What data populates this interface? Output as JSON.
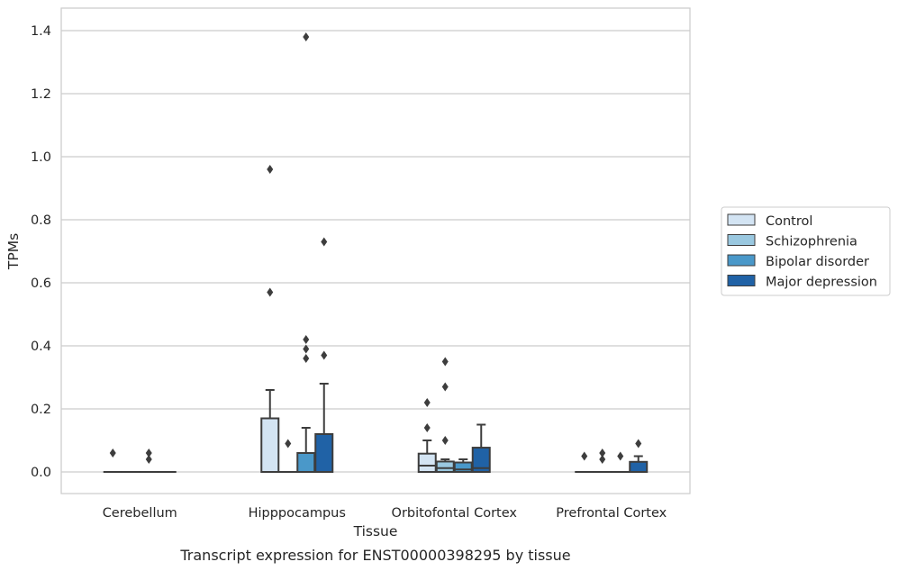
{
  "caption": "Transcript expression for ENST00000398295 by tissue",
  "chart_data": {
    "type": "box",
    "xlabel": "Tissue",
    "ylabel": "TPMs",
    "ylim": [
      -0.065,
      1.45
    ],
    "yticks": [
      0.0,
      0.2,
      0.4,
      0.6,
      0.8,
      1.0,
      1.2,
      1.4
    ],
    "ytick_labels": [
      "0.0",
      "0.2",
      "0.4",
      "0.6",
      "0.8",
      "1.0",
      "1.2",
      "1.4"
    ],
    "grid": "horizontal",
    "legend_position": "right",
    "categories": [
      "Cerebellum",
      "Hipppocampus",
      "Orbitofontal Cortex",
      "Prefrontal Cortex"
    ],
    "series": [
      {
        "name": "Control",
        "color": "#d3e4f3",
        "boxes": [
          {
            "q1": 0,
            "median": 0,
            "q3": 0,
            "whisker_low": 0,
            "whisker_high": 0,
            "outliers": [
              0.06
            ]
          },
          {
            "q1": 0,
            "median": 0,
            "q3": 0.17,
            "whisker_low": 0,
            "whisker_high": 0.26,
            "outliers": [
              0.57,
              0.96
            ]
          },
          {
            "q1": 0,
            "median": 0.02,
            "q3": 0.058,
            "whisker_low": 0,
            "whisker_high": 0.1,
            "outliers": [
              0.14,
              0.22
            ]
          },
          {
            "q1": 0,
            "median": 0,
            "q3": 0,
            "whisker_low": 0,
            "whisker_high": 0,
            "outliers": [
              0.05
            ]
          }
        ]
      },
      {
        "name": "Schizophrenia",
        "color": "#9ac8e0",
        "boxes": [
          {
            "q1": 0,
            "median": 0,
            "q3": 0,
            "whisker_low": 0,
            "whisker_high": 0,
            "outliers": []
          },
          {
            "q1": 0,
            "median": 0,
            "q3": 0,
            "whisker_low": 0,
            "whisker_high": 0,
            "outliers": [
              0.09
            ]
          },
          {
            "q1": 0,
            "median": 0.012,
            "q3": 0.033,
            "whisker_low": 0,
            "whisker_high": 0.04,
            "outliers": [
              0.1,
              0.27,
              0.35
            ]
          },
          {
            "q1": 0,
            "median": 0,
            "q3": 0,
            "whisker_low": 0,
            "whisker_high": 0,
            "outliers": [
              0.04,
              0.06
            ]
          }
        ]
      },
      {
        "name": "Bipolar disorder",
        "color": "#4a98c9",
        "boxes": [
          {
            "q1": 0,
            "median": 0,
            "q3": 0,
            "whisker_low": 0,
            "whisker_high": 0,
            "outliers": [
              0.04,
              0.06
            ]
          },
          {
            "q1": 0,
            "median": 0,
            "q3": 0.06,
            "whisker_low": 0,
            "whisker_high": 0.14,
            "outliers": [
              0.36,
              0.39,
              0.42,
              1.38
            ]
          },
          {
            "q1": 0,
            "median": 0.008,
            "q3": 0.03,
            "whisker_low": 0,
            "whisker_high": 0.04,
            "outliers": []
          },
          {
            "q1": 0,
            "median": 0,
            "q3": 0,
            "whisker_low": 0,
            "whisker_high": 0,
            "outliers": [
              0.05
            ]
          }
        ]
      },
      {
        "name": "Major depression",
        "color": "#2062a6",
        "boxes": [
          {
            "q1": 0,
            "median": 0,
            "q3": 0,
            "whisker_low": 0,
            "whisker_high": 0,
            "outliers": []
          },
          {
            "q1": 0,
            "median": 0,
            "q3": 0.12,
            "whisker_low": 0,
            "whisker_high": 0.28,
            "outliers": [
              0.37,
              0.73
            ]
          },
          {
            "q1": 0,
            "median": 0.012,
            "q3": 0.077,
            "whisker_low": 0,
            "whisker_high": 0.15,
            "outliers": []
          },
          {
            "q1": 0,
            "median": 0,
            "q3": 0.032,
            "whisker_low": 0,
            "whisker_high": 0.05,
            "outliers": [
              0.09
            ]
          }
        ]
      }
    ]
  }
}
